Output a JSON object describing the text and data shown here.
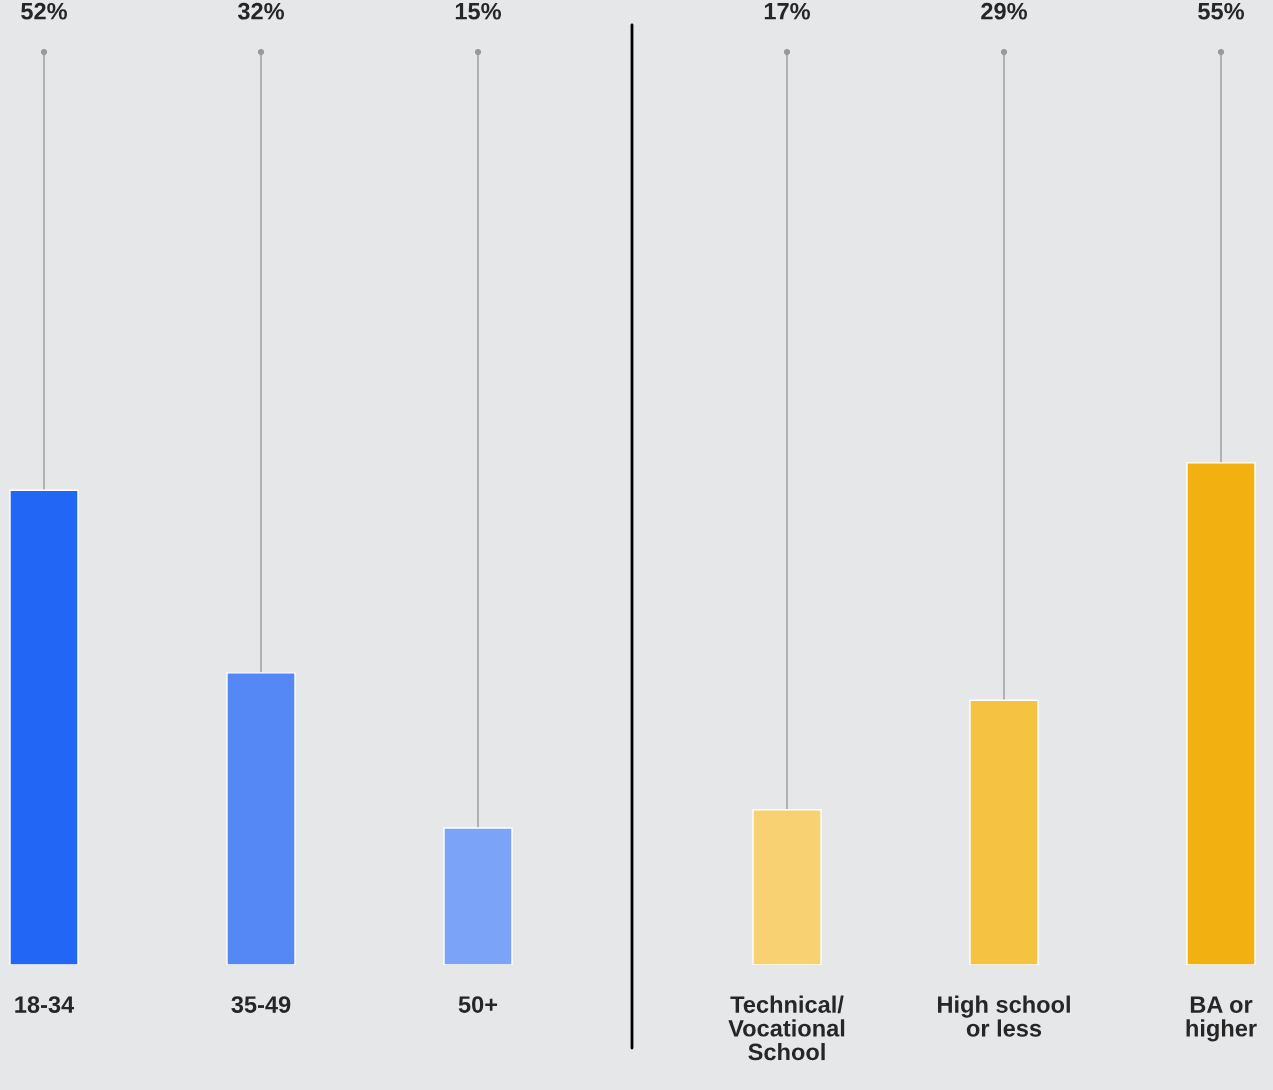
{
  "chart_data": [
    {
      "type": "bar",
      "categories": [
        "18-34",
        "35-49",
        "50+"
      ],
      "values": [
        52,
        32,
        15
      ],
      "colors": [
        "#2266f5",
        "#5588f5",
        "#7ba3f7"
      ],
      "value_labels": [
        "52%",
        "32%",
        "15%"
      ],
      "ylim": [
        0,
        100
      ],
      "tick_labels": "x",
      "grid": "x",
      "legend": false
    },
    {
      "type": "bar",
      "categories": [
        "Technical/\nVocational\nSchool",
        "High school\nor less",
        "BA or\nhigher"
      ],
      "values": [
        17,
        29,
        55
      ],
      "colors": [
        "#f8d272",
        "#f5c242",
        "#f3b111"
      ],
      "value_labels": [
        "17%",
        "29%",
        "55%"
      ],
      "ylim": [
        0,
        100
      ],
      "tick_labels": "x",
      "grid": "x",
      "legend": false
    }
  ]
}
